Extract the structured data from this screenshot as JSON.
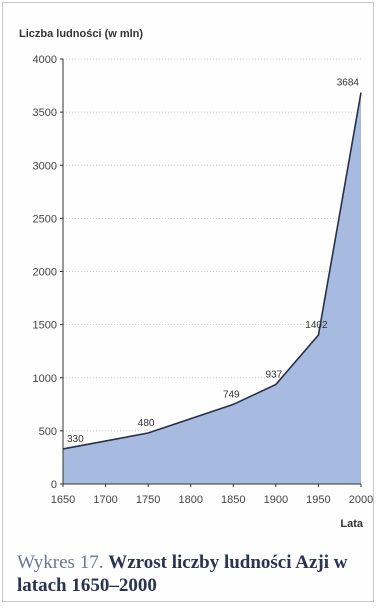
{
  "chart_data": {
    "type": "area",
    "ylabel": "Liczba ludności (w mln)",
    "xlabel": "Lata",
    "x": [
      1650,
      1700,
      1750,
      1800,
      1850,
      1900,
      1950,
      2000
    ],
    "xlim": [
      1650,
      2000
    ],
    "ylim": [
      0,
      4000
    ],
    "yticks": [
      0,
      500,
      1000,
      1500,
      2000,
      2500,
      3000,
      3500,
      4000
    ],
    "xticks": [
      1650,
      1700,
      1750,
      1800,
      1850,
      1900,
      1950,
      2000
    ],
    "series": [
      {
        "values": [
          330,
          null,
          480,
          null,
          749,
          937,
          1402,
          3684
        ],
        "labels": [
          "330",
          null,
          "480",
          null,
          "749",
          "937",
          "1402",
          "3684"
        ]
      }
    ],
    "grid": true,
    "colors": {
      "fill": "#a7bbe0",
      "line": "#2b2f45",
      "grid": "#bdbdbd"
    }
  },
  "caption": {
    "lead": "Wykres 17.",
    "title": "Wzrost liczby ludności Azji w latach 1650–2000"
  }
}
